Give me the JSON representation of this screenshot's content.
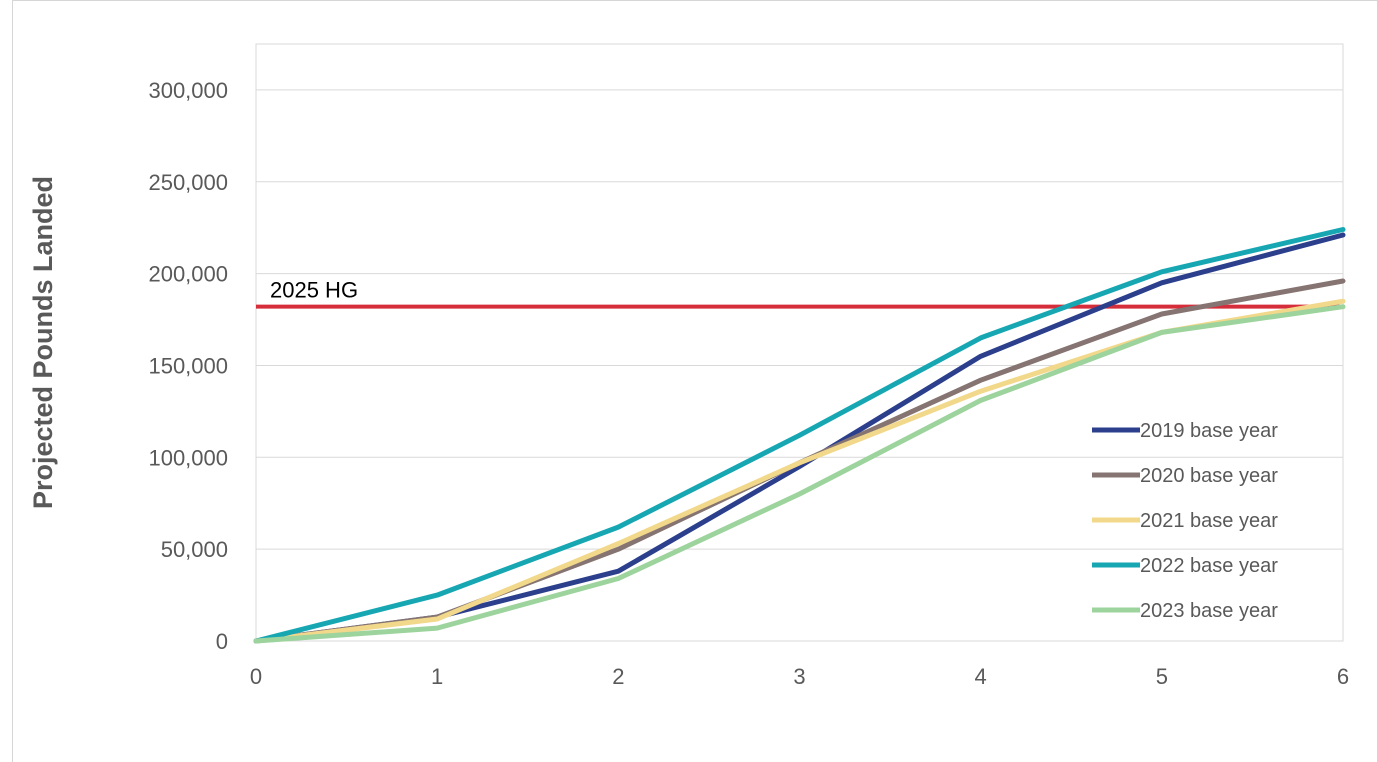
{
  "chart_data": {
    "type": "line",
    "title": "",
    "xlabel": "",
    "ylabel": "Projected Pounds Landed",
    "x": [
      0,
      1,
      2,
      3,
      4,
      5,
      6
    ],
    "xlim": [
      0,
      6
    ],
    "ylim": [
      0,
      325000
    ],
    "xticks": [
      "0",
      "1",
      "2",
      "3",
      "4",
      "5",
      "6"
    ],
    "yticks": [
      {
        "value": 0,
        "label": "0"
      },
      {
        "value": 50000,
        "label": "50,000"
      },
      {
        "value": 100000,
        "label": "100,000"
      },
      {
        "value": 150000,
        "label": "150,000"
      },
      {
        "value": 200000,
        "label": "200,000"
      },
      {
        "value": 250000,
        "label": "250,000"
      },
      {
        "value": 300000,
        "label": "300,000"
      }
    ],
    "grid": "horizontal",
    "legend_position": "bottom-right",
    "series": [
      {
        "name": "2019 base year",
        "color": "#2B3F8C",
        "values": [
          0,
          13000,
          38000,
          95000,
          155000,
          195000,
          221000
        ]
      },
      {
        "name": "2020 base year",
        "color": "#857471",
        "values": [
          0,
          13000,
          50000,
          97000,
          142000,
          178000,
          196000
        ]
      },
      {
        "name": "2021 base year",
        "color": "#F2D88B",
        "values": [
          0,
          12000,
          53000,
          97000,
          136000,
          168000,
          185000
        ]
      },
      {
        "name": "2022 base year",
        "color": "#17A7B3",
        "values": [
          0,
          25000,
          62000,
          112000,
          165000,
          201000,
          224000
        ]
      },
      {
        "name": "2023 base year",
        "color": "#9DD39C",
        "values": [
          0,
          7000,
          34000,
          80000,
          131000,
          168000,
          182000
        ]
      }
    ],
    "reference_line": {
      "label": "2025 HG",
      "value": 182000,
      "color": "#D62D3A"
    }
  }
}
